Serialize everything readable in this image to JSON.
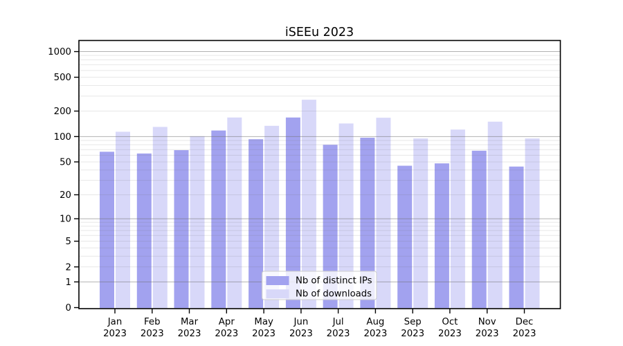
{
  "title": "iSEEu 2023",
  "chart_data": {
    "type": "bar",
    "title": "iSEEu 2023",
    "scale": "log1p",
    "grid": true,
    "legend_position": "bottom-center-inside",
    "categories": [
      "Jan",
      "Feb",
      "Mar",
      "Apr",
      "May",
      "Jun",
      "Jul",
      "Aug",
      "Sep",
      "Oct",
      "Nov",
      "Dec"
    ],
    "year_label": "2023",
    "series": [
      {
        "name": "Nb of distinct IPs",
        "color": "#a2a2ef",
        "values": [
          66,
          63,
          69,
          118,
          93,
          168,
          80,
          97,
          45,
          48,
          68,
          44
        ]
      },
      {
        "name": "Nb of downloads",
        "color": "#d8d8f9",
        "values": [
          114,
          130,
          101,
          168,
          134,
          272,
          143,
          167,
          95,
          121,
          150,
          95
        ]
      }
    ],
    "y_ticks": [
      0,
      1,
      2,
      5,
      10,
      20,
      50,
      100,
      200,
      500,
      1000
    ],
    "ylim": [
      0,
      1350
    ],
    "xlabel": "",
    "ylabel": ""
  },
  "style": {
    "major_grid_color": "#b3b3b3",
    "minor_grid_color": "#e8e8e8",
    "spine_color": "#000000",
    "legend_border_color": "#cccccc",
    "legend_bg_color": "#ffffff"
  }
}
